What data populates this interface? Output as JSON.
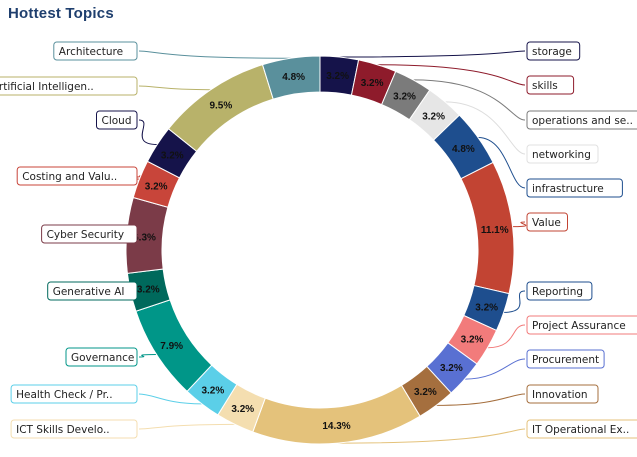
{
  "chart_data": {
    "type": "pie",
    "variant": "donut",
    "title": "Hottest Topics",
    "slices": [
      {
        "label": "storage",
        "value": 3.2,
        "color": "#15134a",
        "side": "right"
      },
      {
        "label": "skills",
        "value": 3.2,
        "color": "#8e1b2b",
        "side": "right"
      },
      {
        "label": "operations and se..",
        "value": 3.2,
        "color": "#7b7b7b",
        "side": "right"
      },
      {
        "label": "networking",
        "value": 3.2,
        "color": "#e6e6e6",
        "side": "right"
      },
      {
        "label": "infrastructure",
        "value": 4.8,
        "color": "#1e4e8e",
        "side": "right"
      },
      {
        "label": "Value",
        "value": 11.1,
        "color": "#c24433",
        "side": "right"
      },
      {
        "label": "Reporting",
        "value": 3.2,
        "color": "#1e4e8e",
        "side": "right"
      },
      {
        "label": "Project Assurance",
        "value": 3.2,
        "color": "#f27b7b",
        "side": "right"
      },
      {
        "label": "Procurement",
        "value": 3.2,
        "color": "#5970d2",
        "side": "right"
      },
      {
        "label": "Innovation",
        "value": 3.2,
        "color": "#a56f3e",
        "side": "right"
      },
      {
        "label": "IT Operational Ex..",
        "value": 14.3,
        "color": "#e4c27b",
        "side": "right"
      },
      {
        "label": "ICT Skills Develo..",
        "value": 3.2,
        "color": "#f4deb0",
        "side": "left"
      },
      {
        "label": "Health Check / Pr..",
        "value": 3.2,
        "color": "#5bcfe8",
        "side": "left"
      },
      {
        "label": "Governance",
        "value": 7.9,
        "color": "#009688",
        "side": "left"
      },
      {
        "label": "Generative AI",
        "value": 3.2,
        "color": "#00695c",
        "side": "left"
      },
      {
        "label": "Cyber Security",
        "value": 6.3,
        "color": "#7b3b48",
        "side": "left"
      },
      {
        "label": "Costing and Valu..",
        "value": 3.2,
        "color": "#c8453a",
        "side": "left"
      },
      {
        "label": "Cloud",
        "value": 3.2,
        "color": "#15134a",
        "side": "left"
      },
      {
        "label": "Artificial Intelligen..",
        "value": 9.5,
        "color": "#b8b26a",
        "side": "left"
      },
      {
        "label": "Architecture",
        "value": 4.8,
        "color": "#5a909c",
        "side": "left"
      }
    ],
    "value_suffix": "%"
  }
}
